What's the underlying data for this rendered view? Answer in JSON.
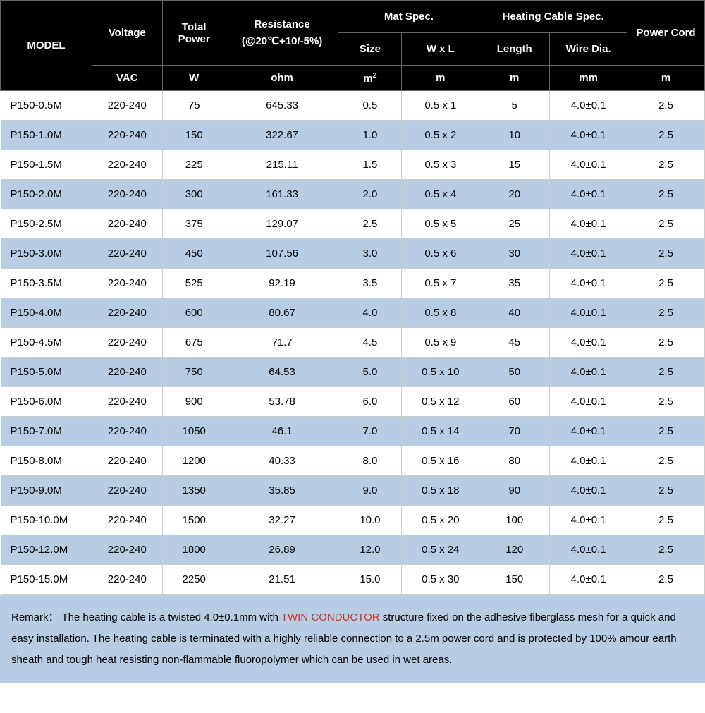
{
  "table": {
    "type": "table",
    "header_bg": "#000000",
    "header_fg": "#ffffff",
    "row_odd_bg": "#ffffff",
    "row_even_bg": "#b6cde4",
    "border_color": "#cccccc",
    "font_family": "Arial",
    "body_fontsize": 15,
    "header_fontsize": 15,
    "col_widths_pct": [
      13,
      10,
      9,
      16,
      9,
      11,
      10,
      11,
      11
    ],
    "header_row1": {
      "model": "MODEL",
      "voltage": "Voltage",
      "total_power": "Total Power",
      "resistance": "Resistance",
      "resistance_sub": "(@20℃+10/-5%)",
      "mat_spec": "Mat Spec.",
      "heating_cable_spec": "Heating Cable Spec.",
      "power_cord": "Power Cord"
    },
    "header_row2": {
      "size": "Size",
      "wxl": "W x L",
      "length": "Length",
      "wire_dia": "Wire Dia."
    },
    "header_units": {
      "voltage": "VAC",
      "total_power": "W",
      "resistance": "ohm",
      "size": "m²",
      "wxl": "m",
      "length": "m",
      "wire_dia": "mm",
      "power_cord": "m"
    },
    "columns": [
      "model",
      "voltage",
      "total_power",
      "resistance",
      "size",
      "wxl",
      "length",
      "wire_dia",
      "power_cord"
    ],
    "rows": [
      [
        "P150-0.5M",
        "220-240",
        "75",
        "645.33",
        "0.5",
        "0.5 x 1",
        "5",
        "4.0±0.1",
        "2.5"
      ],
      [
        "P150-1.0M",
        "220-240",
        "150",
        "322.67",
        "1.0",
        "0.5 x 2",
        "10",
        "4.0±0.1",
        "2.5"
      ],
      [
        "P150-1.5M",
        "220-240",
        "225",
        "215.11",
        "1.5",
        "0.5 x 3",
        "15",
        "4.0±0.1",
        "2.5"
      ],
      [
        "P150-2.0M",
        "220-240",
        "300",
        "161.33",
        "2.0",
        "0.5 x 4",
        "20",
        "4.0±0.1",
        "2.5"
      ],
      [
        "P150-2.5M",
        "220-240",
        "375",
        "129.07",
        "2.5",
        "0.5 x 5",
        "25",
        "4.0±0.1",
        "2.5"
      ],
      [
        "P150-3.0M",
        "220-240",
        "450",
        "107.56",
        "3.0",
        "0.5 x 6",
        "30",
        "4.0±0.1",
        "2.5"
      ],
      [
        "P150-3.5M",
        "220-240",
        "525",
        "92.19",
        "3.5",
        "0.5 x 7",
        "35",
        "4.0±0.1",
        "2.5"
      ],
      [
        "P150-4.0M",
        "220-240",
        "600",
        "80.67",
        "4.0",
        "0.5 x 8",
        "40",
        "4.0±0.1",
        "2.5"
      ],
      [
        "P150-4.5M",
        "220-240",
        "675",
        "71.7",
        "4.5",
        "0.5 x 9",
        "45",
        "4.0±0.1",
        "2.5"
      ],
      [
        "P150-5.0M",
        "220-240",
        "750",
        "64.53",
        "5.0",
        "0.5 x 10",
        "50",
        "4.0±0.1",
        "2.5"
      ],
      [
        "P150-6.0M",
        "220-240",
        "900",
        "53.78",
        "6.0",
        "0.5 x 12",
        "60",
        "4.0±0.1",
        "2.5"
      ],
      [
        "P150-7.0M",
        "220-240",
        "1050",
        "46.1",
        "7.0",
        "0.5 x 14",
        "70",
        "4.0±0.1",
        "2.5"
      ],
      [
        "P150-8.0M",
        "220-240",
        "1200",
        "40.33",
        "8.0",
        "0.5 x 16",
        "80",
        "4.0±0.1",
        "2.5"
      ],
      [
        "P150-9.0M",
        "220-240",
        "1350",
        "35.85",
        "9.0",
        "0.5 x 18",
        "90",
        "4.0±0.1",
        "2.5"
      ],
      [
        "P150-10.0M",
        "220-240",
        "1500",
        "32.27",
        "10.0",
        "0.5 x 20",
        "100",
        "4.0±0.1",
        "2.5"
      ],
      [
        "P150-12.0M",
        "220-240",
        "1800",
        "26.89",
        "12.0",
        "0.5 x 24",
        "120",
        "4.0±0.1",
        "2.5"
      ],
      [
        "P150-15.0M",
        "220-240",
        "2250",
        "21.51",
        "15.0",
        "0.5 x 30",
        "150",
        "4.0±0.1",
        "2.5"
      ]
    ]
  },
  "remark": {
    "bg": "#b6cde4",
    "highlight_color": "#d4302b",
    "prefix": "Remark：",
    "text_before": "The heating cable is a twisted 4.0±0.1mm with ",
    "highlight": "TWIN CONDUCTOR",
    "text_after": " structure fixed on the adhesive fiberglass mesh for a quick and easy installation. The heating cable is terminated with a highly reliable connection to a 2.5m power cord and is protected by 100% amour earth sheath and tough heat resisting non-flammable fluoropolymer which can be used in wet areas."
  }
}
